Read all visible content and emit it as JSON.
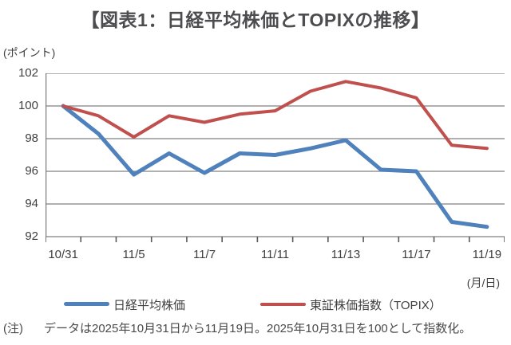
{
  "title": "【図表1：日経平均株価とTOPIXの推移】",
  "y_axis_unit": "(ポイント)",
  "x_axis_unit": "(月/日)",
  "note_label": "(注)",
  "note_text": "データは2025年10月31日から11月19日。2025年10月31日を100として指数化。",
  "colors": {
    "nikkei_line": "#4F81BD",
    "topix_line": "#C0504D",
    "gridline": "#808080",
    "tick_mark": "#595959",
    "title_text": "#4d4d4f",
    "axis_text": "#3f3f3f"
  },
  "chart_data": {
    "type": "line",
    "title": "【図表1：日経平均株価とTOPIXの推移】",
    "xlabel": "(月/日)",
    "ylabel": "(ポイント)",
    "ylim": [
      92,
      102
    ],
    "y_ticks": [
      92,
      94,
      96,
      98,
      100,
      102
    ],
    "grid": true,
    "legend_position": "bottom",
    "x": [
      "10/31",
      "11/4",
      "11/5",
      "11/6",
      "11/7",
      "11/10",
      "11/11",
      "11/12",
      "11/13",
      "11/14",
      "11/17",
      "11/18",
      "11/19"
    ],
    "x_tick_labels": [
      "10/31",
      "11/5",
      "11/7",
      "11/11",
      "11/13",
      "11/17",
      "11/19"
    ],
    "x_tick_label_indices": [
      0,
      2,
      4,
      6,
      8,
      10,
      12
    ],
    "series": [
      {
        "name": "日経平均株価",
        "color": "#4F81BD",
        "values": [
          100,
          98.3,
          95.8,
          97.1,
          95.9,
          97.1,
          97.0,
          97.4,
          97.9,
          96.1,
          96.0,
          92.9,
          92.6
        ]
      },
      {
        "name": "東証株価指数（TOPIX）",
        "color": "#C0504D",
        "values": [
          100,
          99.4,
          98.1,
          99.4,
          99.0,
          99.5,
          99.7,
          100.9,
          101.5,
          101.1,
          100.5,
          97.6,
          97.4
        ]
      }
    ]
  }
}
